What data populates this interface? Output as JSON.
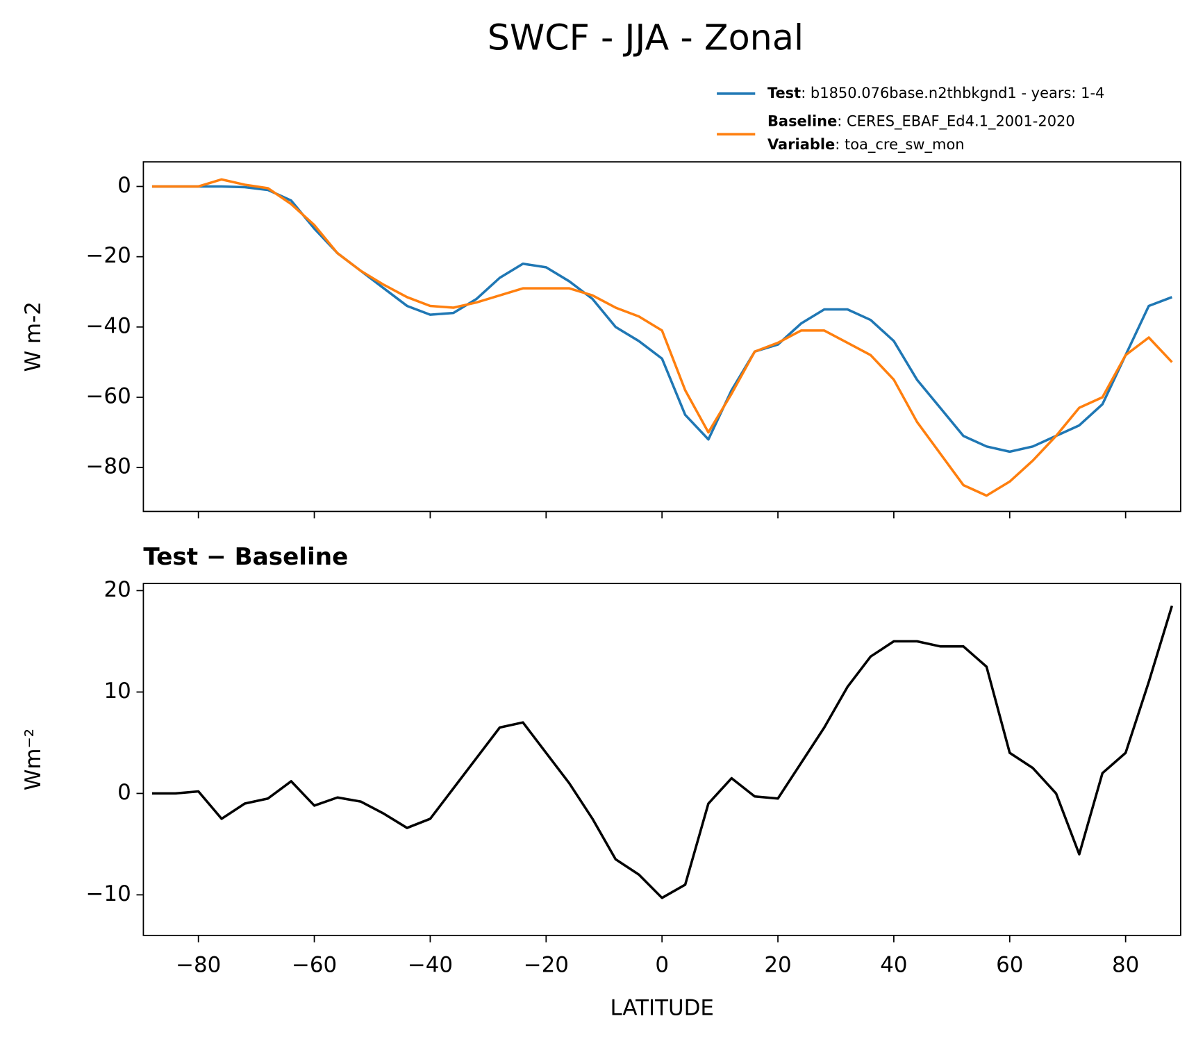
{
  "chart_data": [
    {
      "type": "line",
      "title": "SWCF - JJA - Zonal",
      "ylabel": "W m-2",
      "legend_extra": {
        "name": "Variable",
        "text": ": toa_cre_sw_mon"
      },
      "x": [
        -88,
        -84,
        -80,
        -76,
        -72,
        -68,
        -64,
        -60,
        -56,
        -52,
        -48,
        -44,
        -40,
        -36,
        -32,
        -28,
        -24,
        -20,
        -16,
        -12,
        -8,
        -4,
        0,
        4,
        8,
        12,
        16,
        20,
        24,
        28,
        32,
        36,
        40,
        44,
        48,
        52,
        56,
        60,
        64,
        68,
        72,
        76,
        80,
        84,
        88
      ],
      "series": [
        {
          "name": "Test",
          "legend_text": ": b1850.076base.n2thbkgnd1 - years: 1-4",
          "color": "#1f77b4",
          "values": [
            0,
            0,
            0,
            0,
            -0.2,
            -1,
            -4,
            -12,
            -19,
            -24,
            -29,
            -34,
            -36.5,
            -36,
            -32,
            -26,
            -22,
            -23,
            -27,
            -32,
            -40,
            -44,
            -49,
            -65,
            -72,
            -58,
            -47,
            -45,
            -39,
            -35,
            -35,
            -38,
            -44,
            -55,
            -63,
            -71,
            -74,
            -75.5,
            -74,
            -71,
            -68,
            -62,
            -48,
            -34,
            -31.5
          ]
        },
        {
          "name": "Baseline",
          "legend_text": ": CERES_EBAF_Ed4.1_2001-2020",
          "color": "#ff7f0e",
          "values": [
            0,
            0,
            0,
            2,
            0.5,
            -0.5,
            -5,
            -11,
            -19,
            -24,
            -28,
            -31.5,
            -34,
            -34.5,
            -33,
            -31,
            -29,
            -29,
            -29,
            -31,
            -34.5,
            -37,
            -41,
            -58,
            -70,
            -59,
            -47,
            -44.5,
            -41,
            -41,
            -44.5,
            -48,
            -55,
            -67,
            -76,
            -85,
            -88,
            -84,
            -78,
            -71,
            -63,
            -60,
            -48,
            -43,
            -50
          ]
        }
      ],
      "xlim": [
        -89.5,
        89.5
      ],
      "xticks": [
        -80,
        -60,
        -40,
        -20,
        0,
        20,
        40,
        60,
        80
      ],
      "ylim": [
        -92.5,
        7
      ],
      "yticks": [
        {
          "value": -80,
          "label": "−80"
        },
        {
          "value": -60,
          "label": "−60"
        },
        {
          "value": -40,
          "label": "−40"
        },
        {
          "value": -20,
          "label": "−20"
        },
        0
      ]
    },
    {
      "type": "line",
      "title": "Test − Baseline",
      "ylabel": "Wm⁻²",
      "xlabel": "LATITUDE",
      "x": [
        -88,
        -84,
        -80,
        -76,
        -72,
        -68,
        -64,
        -60,
        -56,
        -52,
        -48,
        -44,
        -40,
        -36,
        -32,
        -28,
        -24,
        -20,
        -16,
        -12,
        -8,
        -4,
        0,
        4,
        8,
        12,
        16,
        20,
        24,
        28,
        32,
        36,
        40,
        44,
        48,
        52,
        56,
        60,
        64,
        68,
        72,
        76,
        80,
        84,
        88
      ],
      "series": [
        {
          "color": "#000000",
          "values": [
            0,
            0,
            0.2,
            -2.5,
            -1,
            -0.5,
            1.2,
            -1.2,
            -0.4,
            -0.8,
            -2,
            -3.4,
            -2.5,
            0.5,
            3.5,
            6.5,
            7,
            4,
            1,
            -2.5,
            -6.5,
            -8,
            -10.3,
            -9,
            -1,
            1.5,
            -0.3,
            -0.5,
            3,
            6.5,
            10.5,
            13.5,
            15,
            15,
            14.5,
            14.5,
            12.5,
            4,
            2.5,
            0,
            -6,
            2,
            4,
            11,
            18.5
          ]
        }
      ],
      "xlim": [
        -89.5,
        89.5
      ],
      "xticks": [
        {
          "value": -80,
          "label": "−80"
        },
        {
          "value": -60,
          "label": "−60"
        },
        {
          "value": -40,
          "label": "−40"
        },
        {
          "value": -20,
          "label": "−20"
        },
        0,
        20,
        40,
        60,
        80
      ],
      "ylim": [
        -14,
        20.7
      ],
      "yticks": [
        {
          "value": -10,
          "label": "−10"
        },
        0,
        10,
        20
      ]
    }
  ]
}
